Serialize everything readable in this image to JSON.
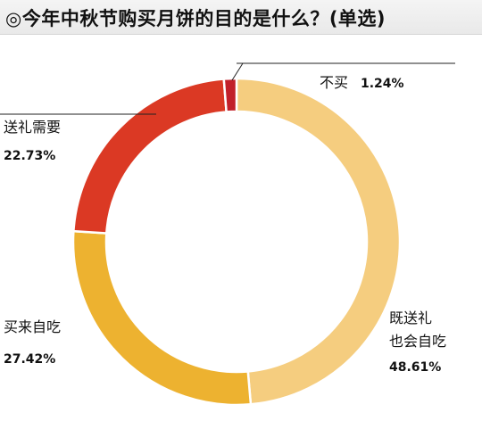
{
  "chart_data": {
    "type": "pie",
    "donut": true,
    "title": "◎今年中秋节购买月饼的目的是什么？(单选)",
    "slices": [
      {
        "label_lines": [
          "既送礼",
          "也会自吃"
        ],
        "value": 48.61,
        "value_text": "48.61%",
        "color": "#f5cd7f"
      },
      {
        "label_lines": [
          "买来自吃"
        ],
        "value": 27.42,
        "value_text": "27.42%",
        "color": "#edb230"
      },
      {
        "label_lines": [
          "送礼需要"
        ],
        "value": 22.73,
        "value_text": "22.73%",
        "color": "#db3924"
      },
      {
        "label_lines": [
          "不买"
        ],
        "value": 1.24,
        "value_text": "1.24%",
        "color": "#c2202a"
      }
    ]
  }
}
